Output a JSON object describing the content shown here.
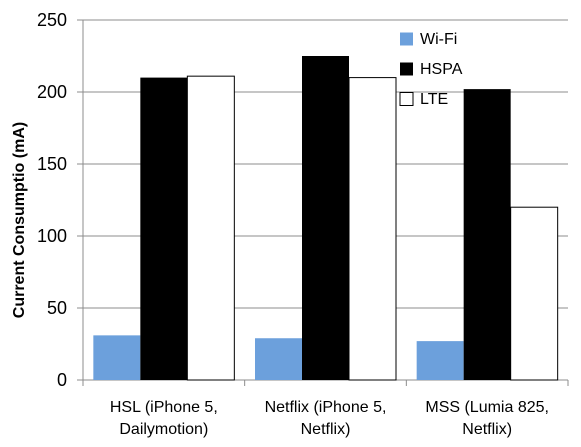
{
  "chart_data": {
    "type": "bar",
    "title": "",
    "xlabel": "",
    "ylabel": "Current Consumptio (mA)",
    "ylim": [
      0,
      250
    ],
    "yticks": [
      0,
      50,
      100,
      150,
      200,
      250
    ],
    "grid": true,
    "legend_position": "top-right",
    "categories": [
      [
        "HSL (iPhone 5,",
        "Dailymotion)"
      ],
      [
        "Netflix (iPhone 5,",
        "Netflix)"
      ],
      [
        "MSS (Lumia 825,",
        "Netflix)"
      ]
    ],
    "series": [
      {
        "name": "Wi-Fi",
        "color": "#6ca0dc",
        "values": [
          31,
          29,
          27
        ]
      },
      {
        "name": "HSPA",
        "color": "#000000",
        "values": [
          210,
          225,
          202
        ]
      },
      {
        "name": "LTE",
        "color": "#ffffff",
        "values": [
          211,
          210,
          120
        ]
      }
    ]
  }
}
